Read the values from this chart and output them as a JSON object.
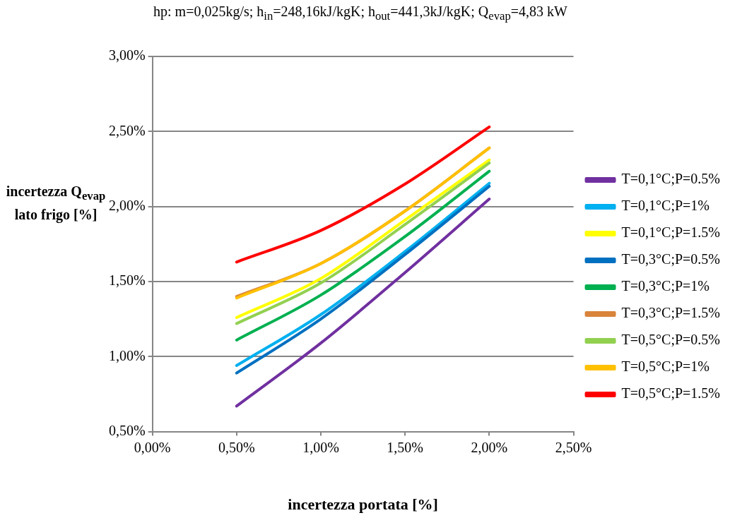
{
  "chart_data": {
    "type": "line",
    "title": "hp: m=0,025kg/s; h$_{in}$=248,16kJ/kgK; h$_{out}$=441,3kJ/kgK; Q$_{evap}$=4,83 kW",
    "xlabel": "incertezza portata [%]",
    "ylabel": "incertezza Q$_{evap}$ lato frigo [%]",
    "x": [
      0.5,
      1.0,
      1.5,
      2.0
    ],
    "series": [
      {
        "name": "T=0,1°C;P=0.5%",
        "color": "#7030a0",
        "values": [
          0.67,
          1.09,
          1.56,
          2.05
        ]
      },
      {
        "name": "T=0,1°C;P=1%",
        "color": "#00b0f0",
        "values": [
          0.94,
          1.28,
          1.7,
          2.155
        ]
      },
      {
        "name": "T=0,1°C;P=1.5%",
        "color": "#ffff00",
        "values": [
          1.26,
          1.52,
          1.91,
          2.31
        ]
      },
      {
        "name": "T=0,3°C;P=0.5%",
        "color": "#0070c0",
        "values": [
          0.89,
          1.25,
          1.68,
          2.135
        ]
      },
      {
        "name": "T=0,3°C;P=1%",
        "color": "#00b050",
        "values": [
          1.11,
          1.41,
          1.8,
          2.235
        ]
      },
      {
        "name": "T=0,3°C;P=1.5%",
        "color": "#d9843b",
        "values": [
          1.4,
          1.62,
          1.97,
          2.39
        ]
      },
      {
        "name": "T=0,5°C;P=0.5%",
        "color": "#92d050",
        "values": [
          1.22,
          1.49,
          1.88,
          2.29
        ]
      },
      {
        "name": "T=0,5°C;P=1%",
        "color": "#ffc000",
        "values": [
          1.39,
          1.62,
          1.97,
          2.39
        ]
      },
      {
        "name": "T=0,5°C;P=1.5%",
        "color": "#ff0000",
        "values": [
          1.63,
          1.84,
          2.15,
          2.53
        ]
      }
    ],
    "xlim": [
      0,
      2.5
    ],
    "xticks": [
      {
        "value": 0,
        "label": "0,00%"
      },
      {
        "value": 0.5,
        "label": "0,50%"
      },
      {
        "value": 1,
        "label": "1,00%"
      },
      {
        "value": 1.5,
        "label": "1,50%"
      },
      {
        "value": 2,
        "label": "2,00%"
      },
      {
        "value": 2.5,
        "label": "2,50%"
      }
    ],
    "ylim": [
      0.5,
      3
    ],
    "yticks": [
      {
        "value": 0.5,
        "label": "0,50%"
      },
      {
        "value": 1,
        "label": "1,00%"
      },
      {
        "value": 1.5,
        "label": "1,50%"
      },
      {
        "value": 2,
        "label": "2,00%"
      },
      {
        "value": 2.5,
        "label": "2,50%"
      },
      {
        "value": 3,
        "label": "3,00%"
      }
    ],
    "grid": "y",
    "legend": "right",
    "marker": "none",
    "line_style": "solid"
  }
}
